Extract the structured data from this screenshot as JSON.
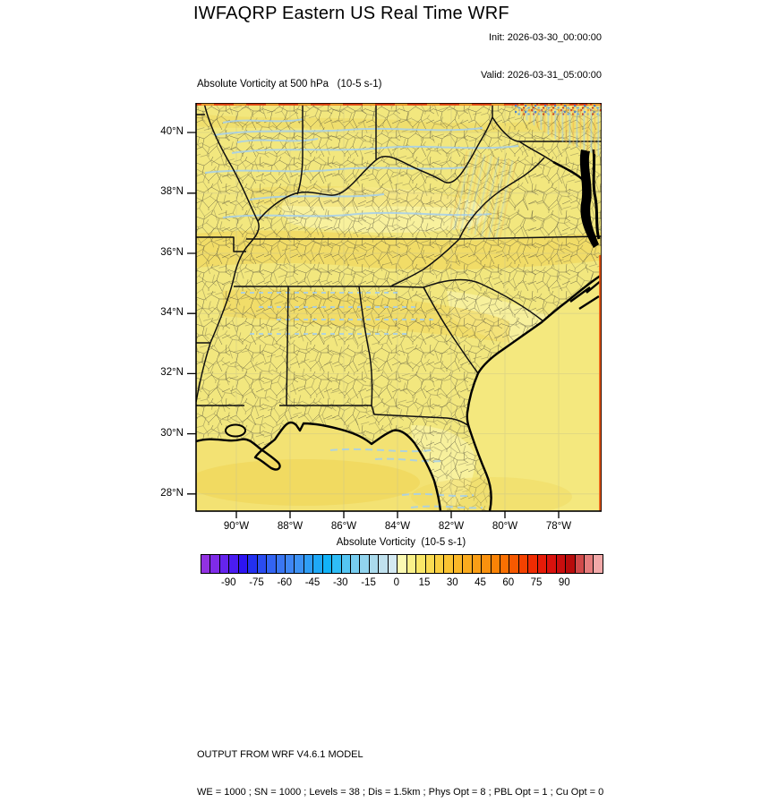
{
  "header": {
    "title": "IWFAQRP Eastern US Real Time WRF",
    "init": "Init: 2026-03-30_00:00:00",
    "valid": "Valid: 2026-03-31_05:00:00"
  },
  "plot": {
    "subtitle": "Absolute Vorticity at 500 hPa   (10-5 s-1)"
  },
  "map": {
    "lat_labels": [
      "40°N",
      "38°N",
      "36°N",
      "34°N",
      "32°N",
      "30°N",
      "28°N"
    ],
    "lon_labels": [
      "90°W",
      "88°W",
      "86°W",
      "84°W",
      "82°W",
      "80°W",
      "78°W"
    ],
    "fill_color_land": "#F2E77E",
    "streak_color": "#A5D0EE",
    "top_edge_color": "#E03E0C"
  },
  "colorbar": {
    "title": "Absolute Vorticity  (10-5 s-1)",
    "min": -105,
    "max": 110,
    "tick_values": [
      -90,
      -75,
      -60,
      -45,
      -30,
      -15,
      0,
      15,
      30,
      45,
      60,
      75,
      90
    ],
    "colors": [
      "#9232E2",
      "#7F2BE8",
      "#6524EE",
      "#4A1CF2",
      "#2D14F2",
      "#2330F0",
      "#2A4CF0",
      "#3364F2",
      "#3A76F2",
      "#3F86F4",
      "#3D92F4",
      "#2F9EF6",
      "#1FA9F7",
      "#12B3F8",
      "#2FBDF6",
      "#55C5F2",
      "#77CDF0",
      "#92D4EE",
      "#AADAEC",
      "#C0E1EE",
      "#D4E9F2",
      "#FBFAB2",
      "#FAF18A",
      "#FAE768",
      "#FADB52",
      "#FACF40",
      "#FAC332",
      "#FAB728",
      "#FAAB1E",
      "#FA9E16",
      "#FA910E",
      "#FA8306",
      "#FA7002",
      "#F75900",
      "#F44200",
      "#EF2C02",
      "#E61B08",
      "#D9120D",
      "#C90E0E",
      "#B70C0C",
      "#D04A4A",
      "#E57D7D",
      "#F2A9A9"
    ]
  },
  "footer": {
    "line1": "OUTPUT FROM WRF V4.6.1 MODEL",
    "line2": "WE = 1000 ; SN = 1000 ; Levels = 38 ; Dis = 1.5km ; Phys Opt = 8 ; PBL Opt = 1 ; Cu Opt = 0"
  }
}
